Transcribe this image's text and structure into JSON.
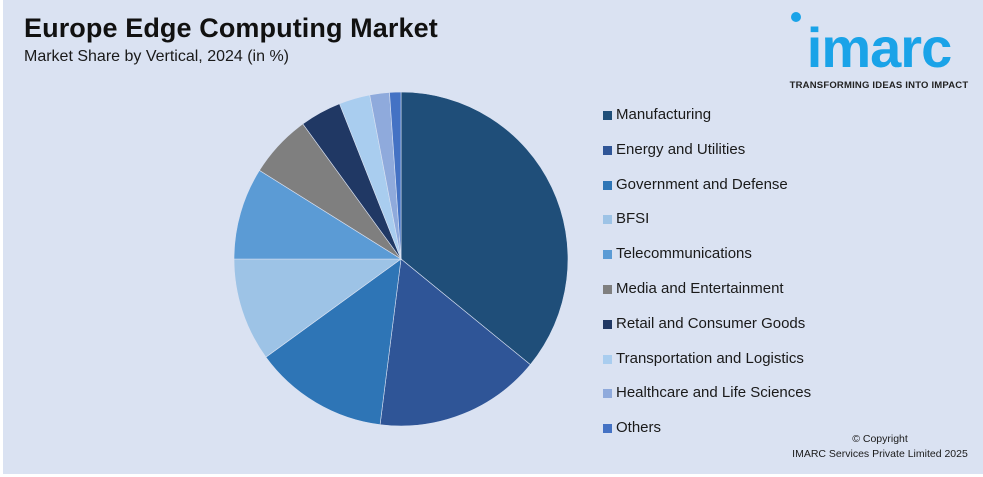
{
  "header": {
    "title": "Europe Edge Computing Market",
    "subtitle": "Market Share by Vertical, 2024 (in %)"
  },
  "logo": {
    "wordmark": "imarc",
    "tagline": "TRANSFORMING IDEAS INTO IMPACT",
    "color": "#1aa3e8"
  },
  "footer": {
    "copyright_line1": "© Copyright",
    "copyright_line2": "IMARC Services Private Limited 2025"
  },
  "chart_data": {
    "type": "pie",
    "title": "Europe Edge Computing Market",
    "subtitle": "Market Share by Vertical, 2024 (in %)",
    "start_angle": "12 o'clock",
    "direction": "clockwise",
    "legend_position": "right",
    "unit": "%",
    "categories": [
      "Manufacturing",
      "Energy and Utilities",
      "Government and Defense",
      "BFSI",
      "Telecommunications",
      "Media and Entertainment",
      "Retail and Consumer Goods",
      "Transportation and Logistics",
      "Healthcare and Life Sciences",
      "Others"
    ],
    "values": [
      35.9,
      16.1,
      13.0,
      10.0,
      8.9,
      6.1,
      4.0,
      3.0,
      1.9,
      1.1
    ],
    "colors": [
      "#1f4e79",
      "#2f5597",
      "#2e75b6",
      "#9dc3e6",
      "#5b9bd5",
      "#7f7f7f",
      "#203864",
      "#a9cdef",
      "#8faadc",
      "#4472c4"
    ]
  }
}
